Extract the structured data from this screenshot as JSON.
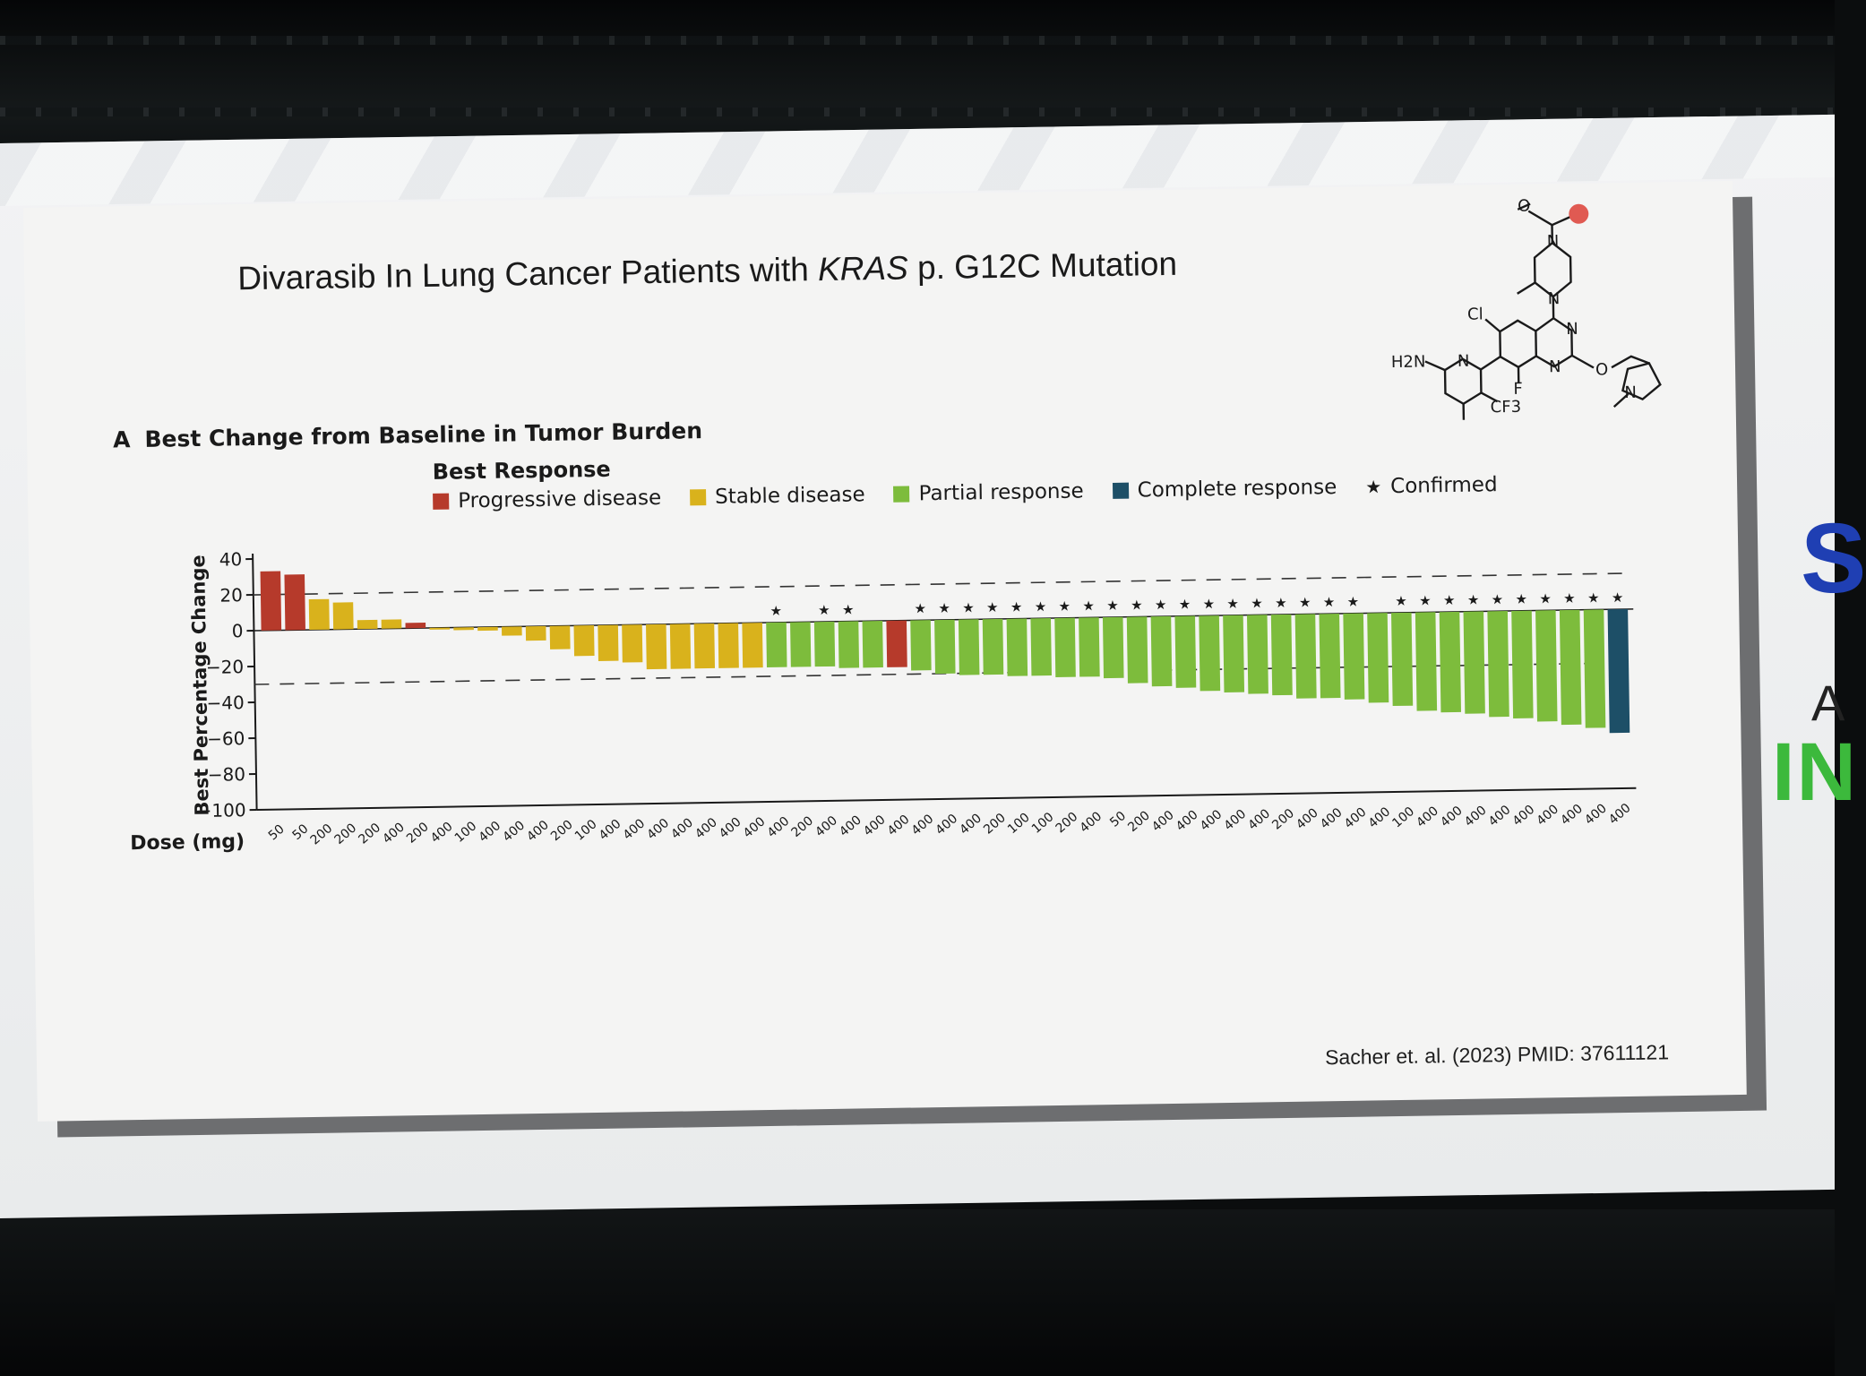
{
  "slide": {
    "title_prefix": "Divarasib In Lung Cancer Patients with ",
    "title_gene": "KRAS",
    "title_suffix": " p. G12C Mutation",
    "citation": "Sacher et. al. (2023) PMID: 37611121"
  },
  "side_text": {
    "s": "S",
    "a": "A",
    "in": "IN"
  },
  "molecule_labels": {
    "o": "O",
    "n1": "N",
    "n2": "N",
    "cl": "Cl",
    "nh2": "H2N",
    "n_pyr": "N",
    "n_q1": "N",
    "n_q2": "N",
    "o2": "O",
    "f": "F",
    "cf3": "CF3",
    "n_pyrr": "N"
  },
  "colors": {
    "progressive": "#b63a2b",
    "stable": "#d9b21c",
    "partial": "#7dbc3c",
    "complete": "#1d4f67"
  },
  "chart_data": {
    "type": "bar",
    "panel_letter": "A",
    "title": "Best Change from Baseline in Tumor Burden",
    "ylabel": "Best Percentage Change",
    "xlabel": "Dose (mg)",
    "ylim": [
      -100,
      40
    ],
    "yticks": [
      "40",
      "20",
      "0",
      "−20",
      "−40",
      "−60",
      "−80",
      "−100"
    ],
    "reference_lines": [
      20,
      -30
    ],
    "legend_title": "Best Response",
    "legend": [
      {
        "key": "PD",
        "label": "Progressive disease"
      },
      {
        "key": "SD",
        "label": "Stable disease"
      },
      {
        "key": "PR",
        "label": "Partial response"
      },
      {
        "key": "CR",
        "label": "Complete response"
      },
      {
        "key": "star",
        "label": "Confirmed"
      }
    ],
    "categories": [
      "50",
      "50",
      "200",
      "200",
      "200",
      "400",
      "200",
      "400",
      "100",
      "400",
      "400",
      "400",
      "200",
      "100",
      "400",
      "400",
      "400",
      "400",
      "400",
      "400",
      "400",
      "400",
      "200",
      "400",
      "400",
      "400",
      "400",
      "400",
      "400",
      "400",
      "200",
      "100",
      "100",
      "200",
      "400",
      "50",
      "200",
      "400",
      "400",
      "400",
      "400",
      "400",
      "200",
      "400",
      "400",
      "400",
      "400",
      "100",
      "400",
      "400",
      "400",
      "400",
      "400",
      "400",
      "400",
      "400",
      "400"
    ],
    "values": [
      33,
      31,
      17,
      15,
      5,
      5,
      3,
      -1,
      -1.5,
      -2,
      -5,
      -8,
      -13,
      -17,
      -20,
      -21,
      -25,
      -25,
      -25,
      -25,
      -25,
      -25,
      -25,
      -25,
      -26,
      -26,
      -26,
      -28,
      -30,
      -31,
      -31,
      -32,
      -32,
      -33,
      -33,
      -34,
      -37,
      -39,
      -40,
      -42,
      -43,
      -44,
      -45,
      -47,
      -47,
      -48,
      -50,
      -52,
      -55,
      -56,
      -57,
      -59,
      -60,
      -62,
      -64,
      -66,
      -69
    ],
    "responses": [
      "PD",
      "PD",
      "SD",
      "SD",
      "SD",
      "SD",
      "PD",
      "SD",
      "SD",
      "SD",
      "SD",
      "SD",
      "SD",
      "SD",
      "SD",
      "SD",
      "SD",
      "SD",
      "SD",
      "SD",
      "SD",
      "PR",
      "PR",
      "PR",
      "PR",
      "PR",
      "PD",
      "PR",
      "PR",
      "PR",
      "PR",
      "PR",
      "PR",
      "PR",
      "PR",
      "PR",
      "PR",
      "PR",
      "PR",
      "PR",
      "PR",
      "PR",
      "PR",
      "PR",
      "PR",
      "PR",
      "PR",
      "PR",
      "PR",
      "PR",
      "PR",
      "PR",
      "PR",
      "PR",
      "PR",
      "PR",
      "CR"
    ],
    "confirmed": [
      false,
      false,
      false,
      false,
      false,
      false,
      false,
      false,
      false,
      false,
      false,
      false,
      false,
      false,
      false,
      false,
      false,
      false,
      false,
      false,
      false,
      true,
      false,
      true,
      true,
      false,
      false,
      true,
      true,
      true,
      true,
      true,
      true,
      true,
      true,
      true,
      true,
      true,
      true,
      true,
      true,
      true,
      true,
      true,
      true,
      true,
      false,
      true,
      true,
      true,
      true,
      true,
      true,
      true,
      true,
      true,
      true
    ]
  }
}
